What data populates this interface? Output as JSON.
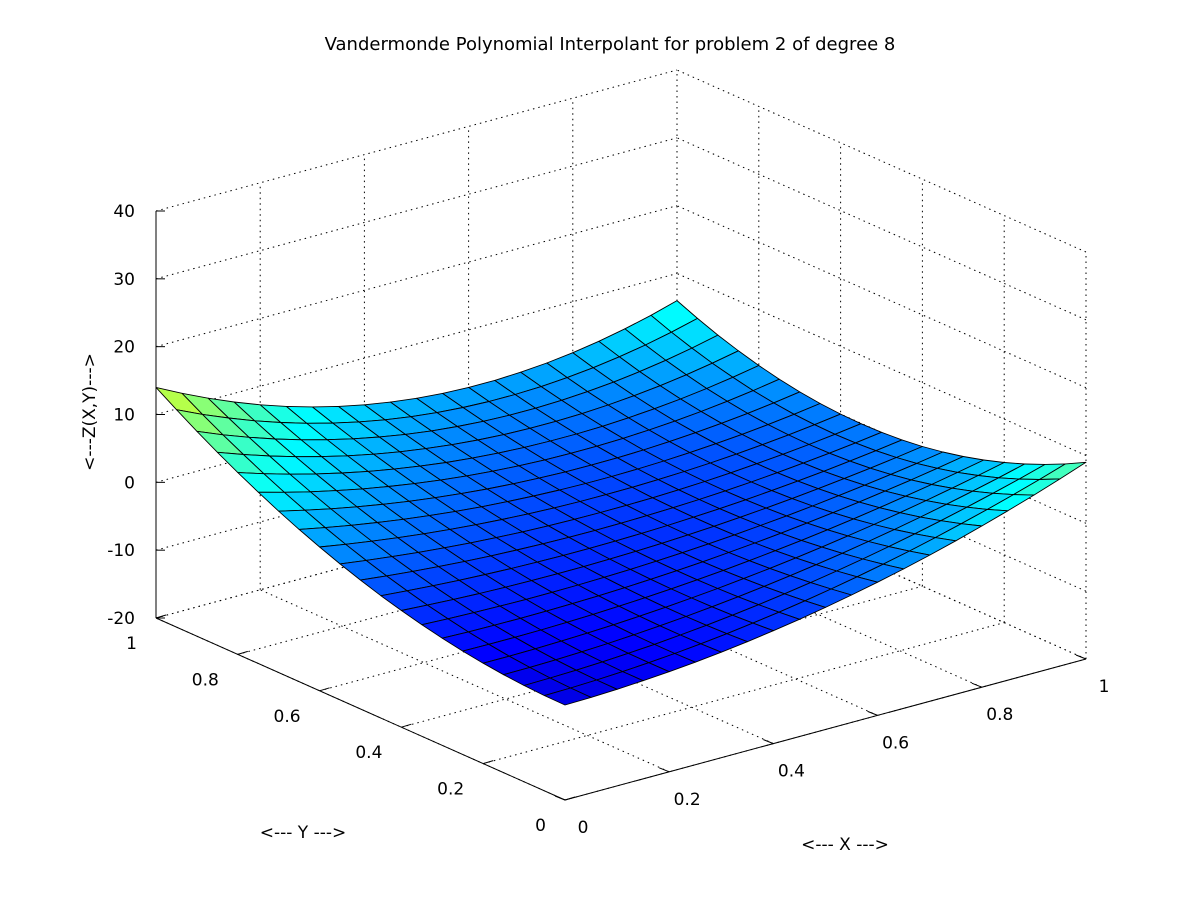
{
  "chart_data": {
    "type": "surface",
    "title": "Vandermonde Polynomial Interpolant for problem 2 of degree 8",
    "xlabel": "<--- X --->",
    "ylabel": "<--- Y --->",
    "zlabel": "<---Z(X,Y)--->",
    "xlim": [
      0,
      1
    ],
    "ylim": [
      0,
      1
    ],
    "zlim": [
      -20,
      40
    ],
    "x_ticks": [
      "0",
      "0.2",
      "0.4",
      "0.6",
      "0.8",
      "1"
    ],
    "x_tick_values": [
      0,
      0.2,
      0.4,
      0.6,
      0.8,
      1
    ],
    "y_ticks": [
      "0",
      "0.2",
      "0.4",
      "0.6",
      "0.8",
      "1"
    ],
    "y_tick_values": [
      0,
      0.2,
      0.4,
      0.6,
      0.8,
      1
    ],
    "z_ticks": [
      "-20",
      "-10",
      "0",
      "10",
      "20",
      "30",
      "40"
    ],
    "z_tick_values": [
      -20,
      -10,
      0,
      10,
      20,
      30,
      40
    ],
    "grid": true,
    "colormap": "jet",
    "color_range": [
      -10,
      30
    ],
    "grid_size": 21,
    "surface_samples": {
      "x": [
        0,
        0.5,
        1
      ],
      "y": [
        0,
        0.5,
        1
      ],
      "z": [
        [
          -6,
          -2,
          9
        ],
        [
          -1,
          -3,
          0
        ],
        [
          14,
          2,
          6
        ]
      ]
    }
  }
}
